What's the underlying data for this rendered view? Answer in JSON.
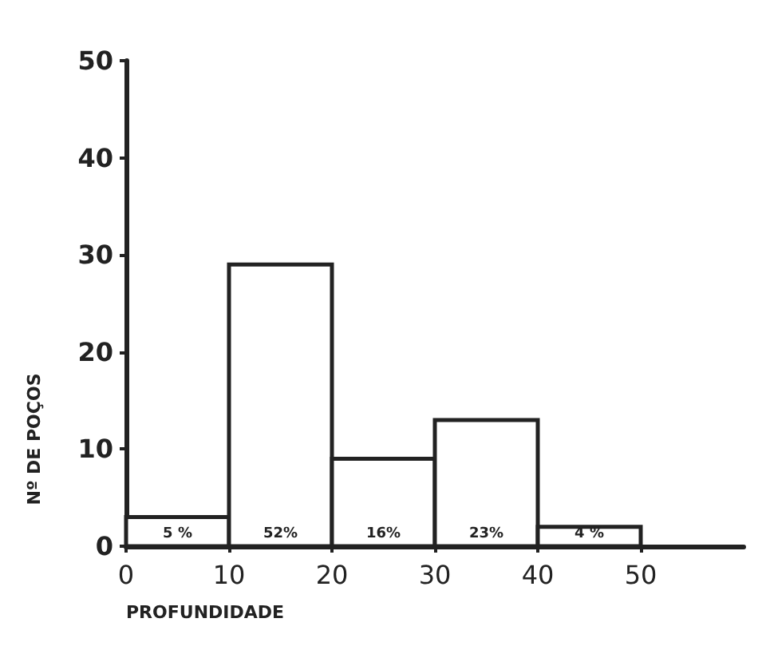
{
  "chart_data": {
    "type": "histogram",
    "xlabel": "PROFUNDIDADE",
    "ylabel": "Nº DE POÇOS",
    "bins": [
      0,
      10,
      20,
      30,
      40,
      50
    ],
    "values": [
      3,
      29,
      9,
      13,
      2
    ],
    "annotations": [
      {
        "text": "5 %",
        "x": 5,
        "y": 0
      },
      {
        "text": "52%",
        "x": 15,
        "y": 0
      },
      {
        "text": "16%",
        "x": 25,
        "y": 0
      },
      {
        "text": "23%",
        "x": 35,
        "y": 0
      },
      {
        "text": "4 %",
        "x": 45,
        "y": 0
      }
    ],
    "color": "#ffffff",
    "xlim": [
      0,
      60
    ],
    "xticks": [
      0,
      10,
      20,
      30,
      40,
      50
    ],
    "ylim": [
      0,
      50
    ],
    "yticks": [
      0,
      10,
      20,
      30,
      40,
      50
    ],
    "grid": false
  }
}
